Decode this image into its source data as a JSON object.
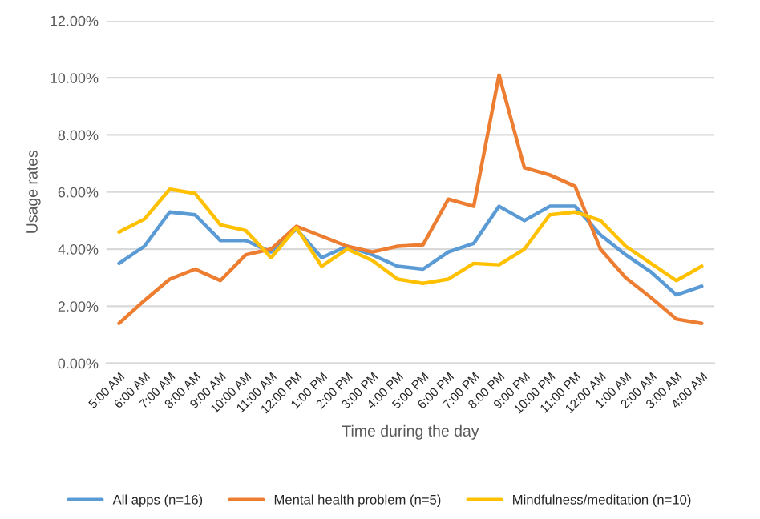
{
  "chart_data": {
    "type": "line",
    "xlabel": "Time during the day",
    "ylabel": "Usage rates",
    "categories": [
      "5:00 AM",
      "6:00 AM",
      "7:00 AM",
      "8:00 AM",
      "9:00 AM",
      "10:00 AM",
      "11:00 AM",
      "12:00 PM",
      "1:00 PM",
      "2:00 PM",
      "3:00 PM",
      "4:00 PM",
      "5:00 PM",
      "6:00 PM",
      "7:00 PM",
      "8:00 PM",
      "9:00 PM",
      "10:00 PM",
      "11:00 PM",
      "12:00 AM",
      "1:00 AM",
      "2:00 AM",
      "3:00 AM",
      "4:00 AM"
    ],
    "series": [
      {
        "name": "All apps (n=16)",
        "color": "#5b9bd5",
        "values": [
          3.5,
          4.1,
          5.3,
          5.2,
          4.3,
          4.3,
          3.9,
          4.7,
          3.7,
          4.1,
          3.8,
          3.4,
          3.3,
          3.9,
          4.2,
          5.5,
          5.0,
          5.5,
          5.5,
          4.5,
          3.8,
          3.2,
          2.4,
          2.7
        ]
      },
      {
        "name": "Mental health problem (n=5)",
        "color": "#ed7d31",
        "values": [
          1.4,
          2.2,
          2.95,
          3.3,
          2.9,
          3.8,
          4.0,
          4.8,
          4.45,
          4.1,
          3.9,
          4.1,
          4.15,
          5.75,
          5.5,
          10.1,
          6.85,
          6.6,
          6.2,
          4.0,
          3.0,
          2.3,
          1.55,
          1.4
        ]
      },
      {
        "name": "Mindfulness/meditation (n=10)",
        "color": "#ffc000",
        "values": [
          4.6,
          5.05,
          6.1,
          5.95,
          4.85,
          4.65,
          3.7,
          4.75,
          3.4,
          4.0,
          3.6,
          2.95,
          2.8,
          2.95,
          3.5,
          3.45,
          4.0,
          5.2,
          5.3,
          5.0,
          4.1,
          3.5,
          2.9,
          3.4
        ]
      }
    ],
    "ylim": [
      0,
      12
    ],
    "yticks": [
      {
        "value": 0,
        "label": "0.00%"
      },
      {
        "value": 2,
        "label": "2.00%"
      },
      {
        "value": 4,
        "label": "4.00%"
      },
      {
        "value": 6,
        "label": "6.00%"
      },
      {
        "value": 8,
        "label": "8.00%"
      },
      {
        "value": 10,
        "label": "10.00%"
      },
      {
        "value": 12,
        "label": "12.00%"
      }
    ],
    "grid": "y",
    "legend": "bottom",
    "marker": "none",
    "line_style": "solid"
  }
}
